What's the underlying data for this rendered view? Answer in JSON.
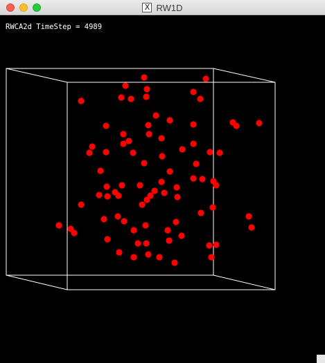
{
  "window": {
    "title": "RW1D",
    "app_icon": "x11-icon",
    "traffic_lights": [
      "close",
      "minimize",
      "maximize"
    ]
  },
  "status": {
    "label": "RWCA2d TimeStep = 4989"
  },
  "colors": {
    "background": "#000000",
    "box": "#ffffff",
    "particle": "#ff0000"
  }
}
